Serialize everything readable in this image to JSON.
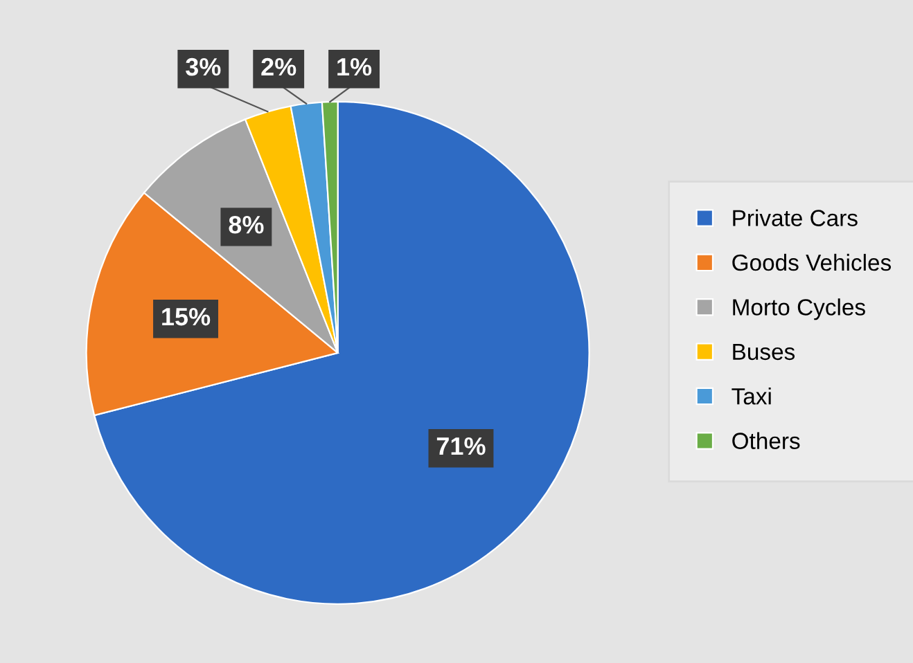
{
  "chart_data": {
    "type": "pie",
    "categories": [
      "Private Cars",
      "Goods Vehicles",
      "Morto Cycles",
      "Buses",
      "Taxi",
      "Others"
    ],
    "values": [
      71,
      15,
      8,
      3,
      2,
      1
    ],
    "colors": [
      "#2e6bc4",
      "#f07d23",
      "#a5a5a5",
      "#ffc000",
      "#4a9ad8",
      "#6aad46"
    ],
    "value_labels": [
      "71%",
      "15%",
      "8%",
      "3%",
      "2%",
      "1%"
    ],
    "legend": "right"
  }
}
